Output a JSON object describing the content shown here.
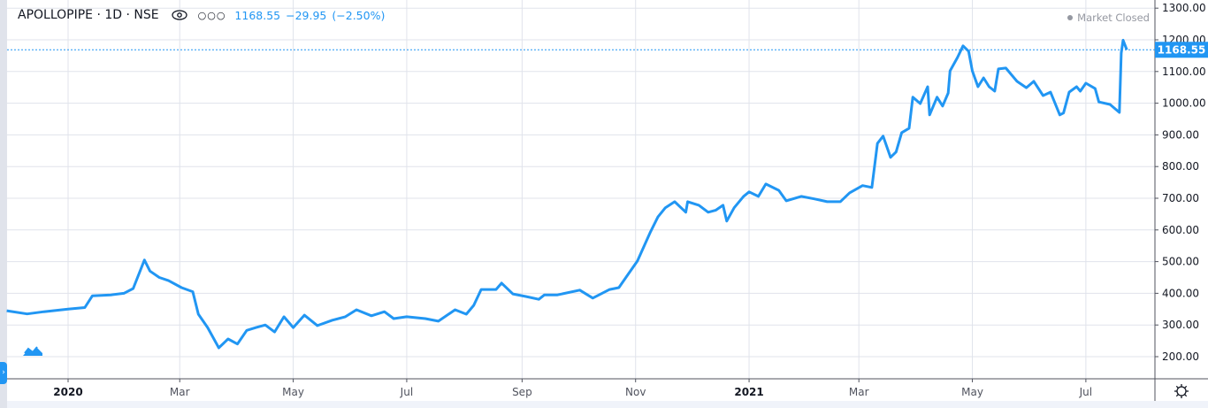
{
  "header": {
    "symbol": "APOLLOPIPE",
    "interval": "1D",
    "exchange": "NSE",
    "title": "APOLLOPIPE · 1D · NSE",
    "last": "1168.55",
    "change": "−29.95",
    "change_pct": "(−2.50%)",
    "status": "Market Closed",
    "icons": [
      "eye-icon",
      "more-dots-icon"
    ]
  },
  "colors": {
    "line": "#2196f3",
    "grid": "#e0e3eb",
    "axis": "#50535e",
    "text": "#131722",
    "muted": "#9598a1"
  },
  "chart_data": {
    "type": "line",
    "title": "",
    "xlabel": "",
    "ylabel": "",
    "ylim": [
      200,
      1300
    ],
    "grid": true,
    "y_ticks": [
      "1300.00",
      "1200.00",
      "1100.00",
      "1000.00",
      "900.00",
      "800.00",
      "700.00",
      "600.00",
      "500.00",
      "400.00",
      "300.00",
      "200.00"
    ],
    "x_ticks": [
      {
        "label": "2020",
        "date": "2020-01-01",
        "bold": true
      },
      {
        "label": "Mar",
        "date": "2020-03-01"
      },
      {
        "label": "May",
        "date": "2020-05-01"
      },
      {
        "label": "Jul",
        "date": "2020-07-01"
      },
      {
        "label": "Sep",
        "date": "2020-09-01"
      },
      {
        "label": "Nov",
        "date": "2020-11-01"
      },
      {
        "label": "2021",
        "date": "2021-01-01",
        "bold": true
      },
      {
        "label": "Mar",
        "date": "2021-03-01"
      },
      {
        "label": "May",
        "date": "2021-05-01"
      },
      {
        "label": "Jul",
        "date": "2021-07-01"
      }
    ],
    "last_price_label": "1168.55",
    "last_price": 1168.55,
    "series": [
      {
        "points": [
          [
            "2019-11-29",
            345
          ],
          [
            "2019-12-10",
            335
          ],
          [
            "2019-12-19",
            342
          ],
          [
            "2020-01-01",
            350
          ],
          [
            "2020-01-10",
            355
          ],
          [
            "2020-01-14",
            392
          ],
          [
            "2020-01-24",
            395
          ],
          [
            "2020-01-31",
            400
          ],
          [
            "2020-02-05",
            415
          ],
          [
            "2020-02-11",
            505
          ],
          [
            "2020-02-14",
            470
          ],
          [
            "2020-02-19",
            450
          ],
          [
            "2020-02-24",
            440
          ],
          [
            "2020-03-02",
            418
          ],
          [
            "2020-03-08",
            405
          ],
          [
            "2020-03-11",
            334
          ],
          [
            "2020-03-16",
            292
          ],
          [
            "2020-03-22",
            228
          ],
          [
            "2020-03-27",
            256
          ],
          [
            "2020-04-01",
            240
          ],
          [
            "2020-04-06",
            283
          ],
          [
            "2020-04-11",
            292
          ],
          [
            "2020-04-16",
            300
          ],
          [
            "2020-04-21",
            278
          ],
          [
            "2020-04-26",
            326
          ],
          [
            "2020-05-01",
            292
          ],
          [
            "2020-05-07",
            331
          ],
          [
            "2020-05-14",
            298
          ],
          [
            "2020-05-22",
            315
          ],
          [
            "2020-05-29",
            326
          ],
          [
            "2020-06-04",
            348
          ],
          [
            "2020-06-12",
            329
          ],
          [
            "2020-06-19",
            342
          ],
          [
            "2020-06-24",
            320
          ],
          [
            "2020-07-01",
            326
          ],
          [
            "2020-07-11",
            320
          ],
          [
            "2020-07-18",
            312
          ],
          [
            "2020-07-27",
            348
          ],
          [
            "2020-08-02",
            334
          ],
          [
            "2020-08-06",
            362
          ],
          [
            "2020-08-10",
            412
          ],
          [
            "2020-08-18",
            412
          ],
          [
            "2020-08-21",
            432
          ],
          [
            "2020-08-27",
            398
          ],
          [
            "2020-09-03",
            390
          ],
          [
            "2020-09-10",
            381
          ],
          [
            "2020-09-13",
            395
          ],
          [
            "2020-09-20",
            395
          ],
          [
            "2020-10-02",
            410
          ],
          [
            "2020-10-09",
            385
          ],
          [
            "2020-10-18",
            412
          ],
          [
            "2020-10-23",
            418
          ],
          [
            "2020-10-28",
            460
          ],
          [
            "2020-11-02",
            502
          ],
          [
            "2020-11-09",
            594
          ],
          [
            "2020-11-13",
            641
          ],
          [
            "2020-11-17",
            670
          ],
          [
            "2020-11-22",
            689
          ],
          [
            "2020-11-28",
            656
          ],
          [
            "2020-11-29",
            689
          ],
          [
            "2020-12-05",
            678
          ],
          [
            "2020-12-10",
            656
          ],
          [
            "2020-12-14",
            662
          ],
          [
            "2020-12-18",
            678
          ],
          [
            "2020-12-20",
            628
          ],
          [
            "2020-12-24",
            670
          ],
          [
            "2020-12-29",
            706
          ],
          [
            "2021-01-01",
            720
          ],
          [
            "2021-01-06",
            706
          ],
          [
            "2021-01-10",
            745
          ],
          [
            "2021-01-17",
            725
          ],
          [
            "2021-01-21",
            692
          ],
          [
            "2021-01-29",
            706
          ],
          [
            "2021-02-05",
            698
          ],
          [
            "2021-02-12",
            689
          ],
          [
            "2021-02-19",
            689
          ],
          [
            "2021-02-24",
            717
          ],
          [
            "2021-03-03",
            740
          ],
          [
            "2021-03-08",
            734
          ],
          [
            "2021-03-11",
            873
          ],
          [
            "2021-03-14",
            896
          ],
          [
            "2021-03-18",
            829
          ],
          [
            "2021-03-21",
            846
          ],
          [
            "2021-03-24",
            907
          ],
          [
            "2021-03-28",
            921
          ],
          [
            "2021-03-30",
            1019
          ],
          [
            "2021-04-03",
            999
          ],
          [
            "2021-04-07",
            1052
          ],
          [
            "2021-04-08",
            963
          ],
          [
            "2021-04-12",
            1019
          ],
          [
            "2021-04-15",
            991
          ],
          [
            "2021-04-18",
            1032
          ],
          [
            "2021-04-19",
            1102
          ],
          [
            "2021-04-23",
            1144
          ],
          [
            "2021-04-26",
            1181
          ],
          [
            "2021-04-29",
            1164
          ],
          [
            "2021-05-01",
            1102
          ],
          [
            "2021-05-04",
            1052
          ],
          [
            "2021-05-07",
            1080
          ],
          [
            "2021-05-10",
            1052
          ],
          [
            "2021-05-13",
            1038
          ],
          [
            "2021-05-15",
            1108
          ],
          [
            "2021-05-19",
            1111
          ],
          [
            "2021-05-25",
            1069
          ],
          [
            "2021-05-30",
            1049
          ],
          [
            "2021-06-03",
            1069
          ],
          [
            "2021-06-08",
            1024
          ],
          [
            "2021-06-12",
            1035
          ],
          [
            "2021-06-17",
            963
          ],
          [
            "2021-06-19",
            969
          ],
          [
            "2021-06-22",
            1035
          ],
          [
            "2021-06-26",
            1052
          ],
          [
            "2021-06-28",
            1038
          ],
          [
            "2021-07-01",
            1063
          ],
          [
            "2021-07-06",
            1046
          ],
          [
            "2021-07-08",
            1004
          ],
          [
            "2021-07-14",
            996
          ],
          [
            "2021-07-19",
            971
          ],
          [
            "2021-07-20",
            1158
          ],
          [
            "2021-07-21",
            1199
          ],
          [
            "2021-07-23",
            1168.55
          ]
        ]
      }
    ]
  }
}
